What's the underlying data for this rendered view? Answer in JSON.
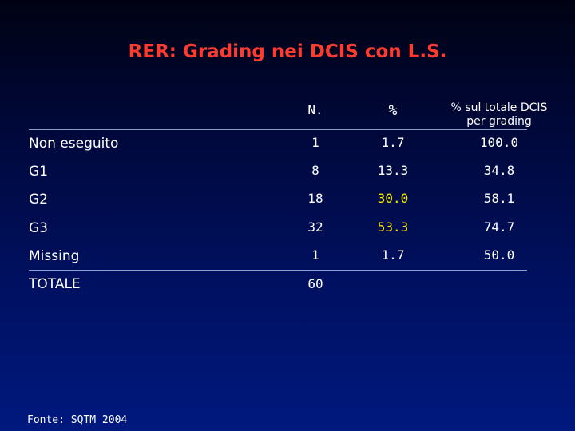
{
  "title": "RER: Grading nei DCIS con L.S.",
  "headers": {
    "n": "N.",
    "pct": "%",
    "pct_total_line1": "% sul totale DCIS",
    "pct_total_line2": "per grading"
  },
  "rows": [
    {
      "label": "Non eseguito",
      "n": "1",
      "pct": "1.7",
      "pct_total": "100.0"
    },
    {
      "label": "G1",
      "n": "8",
      "pct": "13.3",
      "pct_total": "34.8"
    },
    {
      "label": "G2",
      "n": "18",
      "pct": "30.0",
      "pct_total": "58.1"
    },
    {
      "label": "G3",
      "n": "32",
      "pct": "53.3",
      "pct_total": "74.7"
    },
    {
      "label": "Missing",
      "n": "1",
      "pct": "1.7",
      "pct_total": "50.0"
    },
    {
      "label": "TOTALE",
      "n": "60",
      "pct": "",
      "pct_total": ""
    }
  ],
  "source": "Fonte: SQTM 2004",
  "colors": {
    "title": "#ff3b30",
    "highlight": "#f2e600",
    "text": "#ffffff"
  }
}
